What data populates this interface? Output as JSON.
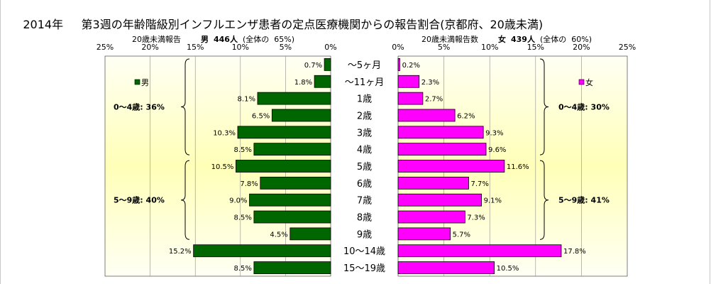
{
  "title": {
    "year": "2014年",
    "text": "第3週の年齢階級別インフルエンザ患者の定点医療機関からの報告割合(京都府、20歳未満)"
  },
  "left_header": {
    "label": "20歳未満報告",
    "sex": "男",
    "count": "446人",
    "share_label": "(全体の",
    "share": "65%)"
  },
  "right_header": {
    "label": "20歳未満報告数",
    "sex": "女",
    "count": "439人",
    "share_label": "(全体の",
    "share": "60%)"
  },
  "chart_data": [
    {
      "type": "bar",
      "orientation": "horizontal",
      "direction": "reversed",
      "series": [
        {
          "name": "男",
          "values": [
            0.7,
            1.8,
            8.1,
            6.5,
            10.3,
            8.5,
            10.5,
            7.8,
            9.0,
            8.5,
            4.5,
            15.2,
            8.5
          ]
        }
      ],
      "value_labels": [
        "0.7%",
        "1.8%",
        "8.1%",
        "6.5%",
        "10.3%",
        "8.5%",
        "10.5%",
        "7.8%",
        "9.0%",
        "8.5%",
        "4.5%",
        "15.2%",
        "8.5%"
      ],
      "xlim": [
        0,
        25
      ],
      "x_ticks": [
        "25%",
        "20%",
        "15%",
        "10%",
        "5%",
        "0%"
      ],
      "grid": true,
      "color": "#006600",
      "legend": "男",
      "groups": [
        {
          "label": "0～4歳:",
          "value": "36%"
        },
        {
          "label": "5～9歳:",
          "value": "40%"
        }
      ]
    },
    {
      "type": "bar",
      "orientation": "horizontal",
      "series": [
        {
          "name": "女",
          "values": [
            0.2,
            2.3,
            2.7,
            6.2,
            9.3,
            9.6,
            11.6,
            7.7,
            9.1,
            7.3,
            5.7,
            17.8,
            10.5
          ]
        }
      ],
      "value_labels": [
        "0.2%",
        "2.3%",
        "2.7%",
        "6.2%",
        "9.3%",
        "9.6%",
        "11.6%",
        "7.7%",
        "9.1%",
        "7.3%",
        "5.7%",
        "17.8%",
        "10.5%"
      ],
      "xlim": [
        0,
        25
      ],
      "x_ticks": [
        "0%",
        "5%",
        "10%",
        "15%",
        "20%",
        "25%"
      ],
      "grid": true,
      "color": "#ff00ff",
      "legend": "女",
      "groups": [
        {
          "label": "0～4歳:",
          "value": "30%"
        },
        {
          "label": "5～9歳:",
          "value": "41%"
        }
      ]
    }
  ],
  "categories": [
    "～5ヶ月",
    "～11ヶ月",
    "1歳",
    "2歳",
    "3歳",
    "4歳",
    "5歳",
    "6歳",
    "7歳",
    "8歳",
    "9歳",
    "10～14歳",
    "15～19歳"
  ]
}
